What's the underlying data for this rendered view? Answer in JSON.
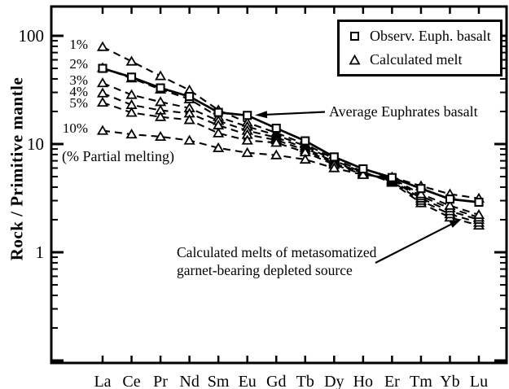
{
  "figure": {
    "y_axis_label": "Rock / Primitive mantle",
    "partial_melting_note": "(% Partial melting)"
  },
  "legend": {
    "items": [
      {
        "marker": "square-icon",
        "label": "Observ. Euph. basalt"
      },
      {
        "marker": "triangle-icon",
        "label": "Calculated melt"
      }
    ]
  },
  "annotations": {
    "avg_basalt_label": "Average Euphrates basalt",
    "calc_melts_label_line1": "Calculated melts of metasomatized",
    "calc_melts_label_line2": "garnet-bearing depleted source",
    "melt_fraction_labels": [
      "1%",
      "2%",
      "3%",
      "4%",
      "5%",
      "10%"
    ]
  },
  "colors": {
    "ink": "#000000",
    "background": "#ffffff"
  },
  "chart_data": {
    "type": "line",
    "x_categories": [
      "La",
      "Ce",
      "Pr",
      "Nd",
      "Sm",
      "Eu",
      "Gd",
      "Tb",
      "Dy",
      "Ho",
      "Er",
      "Tm",
      "Yb",
      "Lu"
    ],
    "y_scale": "log",
    "ylim": [
      0.1,
      180
    ],
    "grid": false,
    "legend_position": "top-right",
    "y_tick_labels": [
      {
        "value": 100,
        "label": "100"
      },
      {
        "value": 10,
        "label": "10"
      },
      {
        "value": 1,
        "label": "1"
      }
    ],
    "series": [
      {
        "name": "Observ. Euph. basalt",
        "marker": "square",
        "line": "solid",
        "values": [
          50,
          41.5,
          33,
          27.5,
          19.6,
          18.4,
          14,
          10.7,
          7.6,
          5.9,
          4.9,
          3.88,
          3.1,
          2.9
        ]
      },
      {
        "name": "Calculated melt 1%",
        "marker": "triangle",
        "line": "dashed",
        "values": [
          79,
          58,
          42.5,
          31.5,
          20.6,
          15.8,
          12.7,
          10,
          7.3,
          5.55,
          4.4,
          2.85,
          2.1,
          1.77
        ]
      },
      {
        "name": "Calculated melt 2%",
        "marker": "triangle",
        "line": "dashed",
        "values": [
          50.5,
          40.5,
          32,
          26,
          17.8,
          14.5,
          12.1,
          9.6,
          7.05,
          5.45,
          4.5,
          3.0,
          2.25,
          1.88
        ]
      },
      {
        "name": "Calculated melt 3%",
        "marker": "triangle",
        "line": "dashed",
        "values": [
          36.6,
          28.5,
          24.5,
          21.5,
          16.4,
          13.3,
          11.5,
          9.2,
          6.85,
          5.35,
          4.6,
          3.15,
          2.4,
          2.0
        ]
      },
      {
        "name": "Calculated melt 4%",
        "marker": "triangle",
        "line": "dashed",
        "values": [
          29.5,
          23,
          20.5,
          19.2,
          14.9,
          12.2,
          10.9,
          8.8,
          6.65,
          5.3,
          4.7,
          3.3,
          2.55,
          2.1
        ]
      },
      {
        "name": "Calculated melt 5%",
        "marker": "triangle",
        "line": "dashed",
        "values": [
          24.2,
          19.5,
          17.8,
          16.7,
          12.6,
          10.8,
          10.3,
          8.4,
          6.45,
          5.25,
          4.8,
          3.45,
          2.7,
          2.22
        ]
      },
      {
        "name": "Calculated melt 10%",
        "marker": "triangle",
        "line": "dashed",
        "values": [
          13.3,
          12.3,
          11.7,
          10.8,
          9.2,
          8.3,
          7.9,
          7.2,
          6.0,
          5.2,
          4.95,
          4.1,
          3.45,
          3.15
        ]
      }
    ],
    "annotation_arrows": [
      {
        "name": "avg-basalt-arrow",
        "from": [
          399,
          137.5
        ],
        "to": [
          313,
          141.5
        ]
      },
      {
        "name": "calc-melts-arrow",
        "from": [
          461,
          323
        ],
        "to": [
          567,
          269
        ]
      }
    ]
  }
}
